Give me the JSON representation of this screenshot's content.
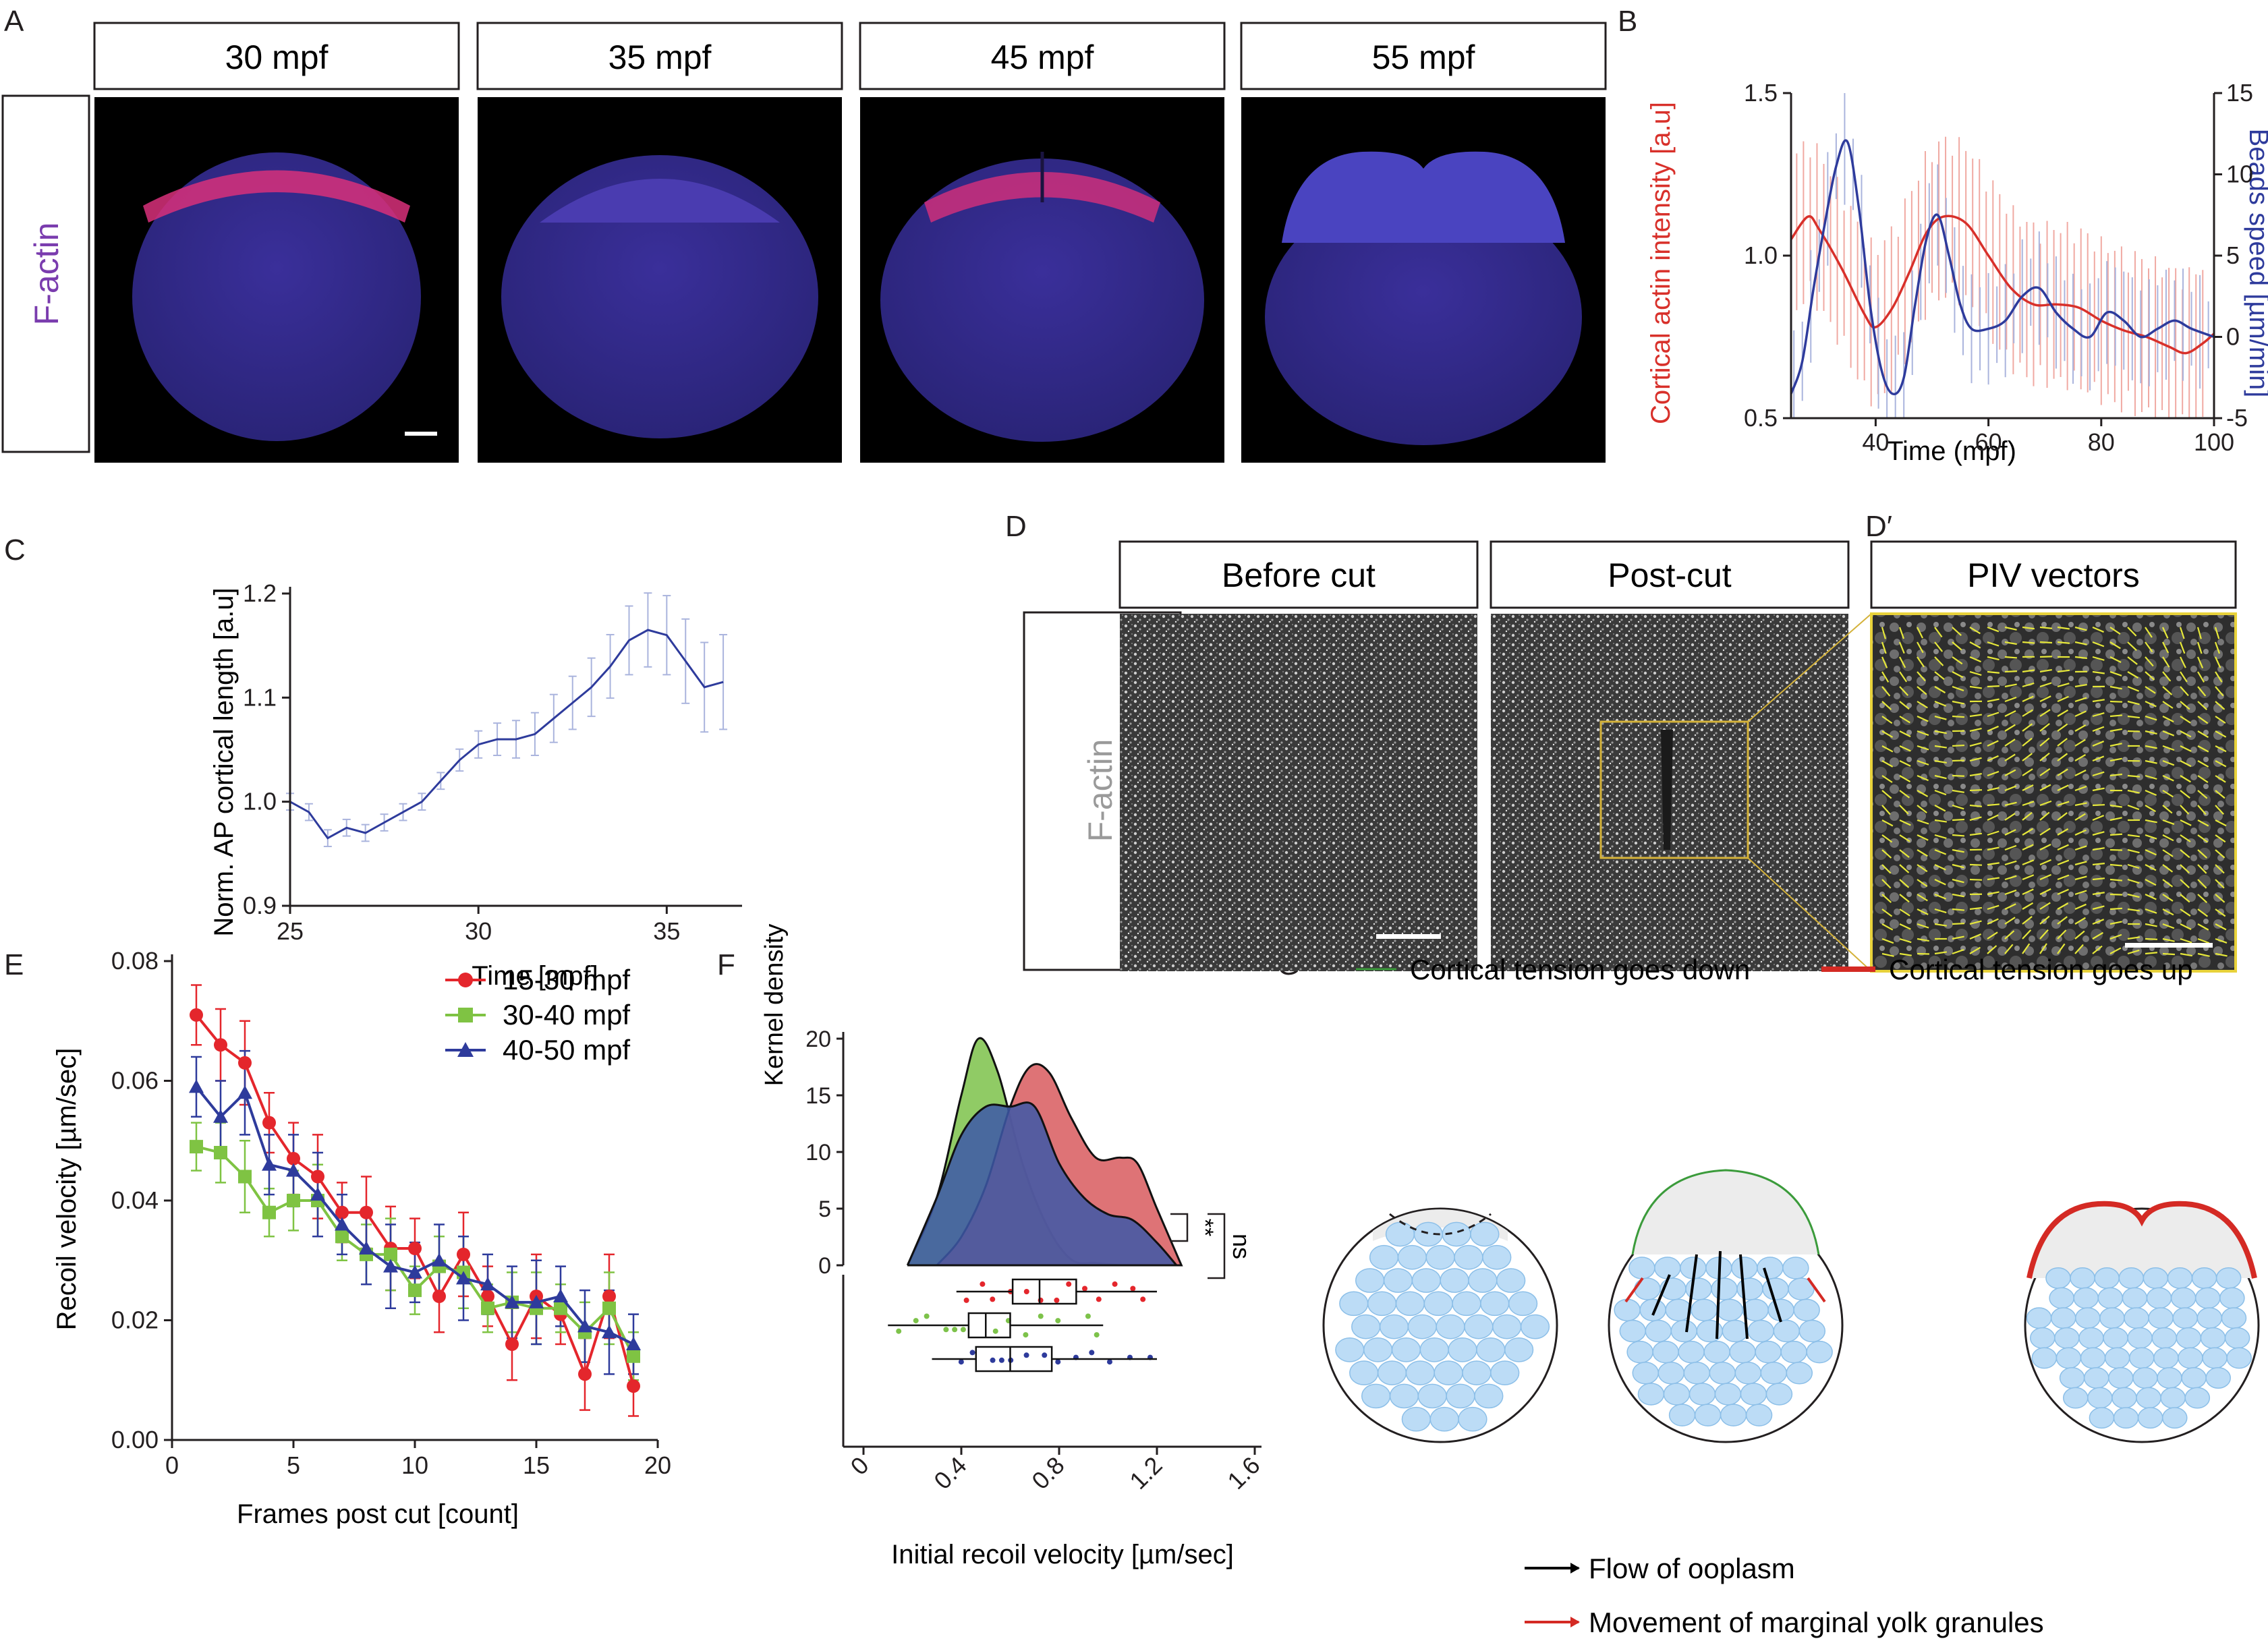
{
  "panel_letters": [
    "A",
    "B",
    "C",
    "D",
    "D′",
    "E",
    "F",
    "G"
  ],
  "panel_a": {
    "timepoints": [
      "30 mpf",
      "35 mpf",
      "45 mpf",
      "55 mpf"
    ],
    "channel_label": "F-actin"
  },
  "panel_d": {
    "headers": [
      "Before cut",
      "Post-cut",
      "PIV vectors"
    ],
    "channel_label": "F-actin"
  },
  "panel_g": {
    "legend_top": [
      "Cortical tension goes down",
      "Cortical tension goes up"
    ],
    "legend_bottom": [
      "Flow of ooplasm",
      "Movement of marginal yolk granules"
    ],
    "colors": {
      "down": "#3b9b3b",
      "up": "#d42a24",
      "cells": "#bcdcf6",
      "cell_edge": "#8cbfe8",
      "cap": "#ececec"
    }
  },
  "chart_data": [
    {
      "panel": "B",
      "type": "line",
      "xlabel": "Time (mpf)",
      "ylabel": "Cortical actin intensity [a.u]",
      "y2label": "Beads speed [µm/min]",
      "xlim": [
        25,
        100
      ],
      "ylim": [
        0.5,
        1.5
      ],
      "y2lim": [
        -5,
        15
      ],
      "xticks": [
        "40",
        "60",
        "80",
        "100"
      ],
      "yticks": [
        "0.5",
        "1.0",
        "1.5"
      ],
      "y2ticks": [
        "-5",
        "0",
        "5",
        "10",
        "15"
      ],
      "colors": {
        "actin": "#d8302a",
        "beads": "#2e3b9c",
        "actin_err": "#f0a9a2",
        "beads_err": "#aab4dd"
      },
      "series": [
        {
          "axis": "left",
          "x": [
            25,
            28,
            30,
            34,
            38,
            40,
            43,
            46,
            49,
            52,
            56,
            60,
            64,
            68,
            72,
            76,
            80,
            84,
            88,
            92,
            95,
            98,
            100
          ],
          "values": [
            1.05,
            1.12,
            1.08,
            0.96,
            0.82,
            0.78,
            0.84,
            0.95,
            1.07,
            1.12,
            1.1,
            1.0,
            0.9,
            0.85,
            0.85,
            0.84,
            0.8,
            0.77,
            0.75,
            0.72,
            0.7,
            0.73,
            0.76
          ]
        },
        {
          "axis": "right",
          "x": [
            25,
            27,
            29,
            31,
            33,
            35,
            37,
            39,
            41,
            43,
            45,
            47,
            49,
            51,
            53,
            55,
            57,
            60,
            63,
            66,
            69,
            72,
            75,
            78,
            81,
            84,
            87,
            90,
            93,
            96,
            100
          ],
          "values": [
            -3.5,
            -1.5,
            3,
            7,
            10.5,
            12,
            8,
            2,
            -2,
            -3.5,
            -2.5,
            2,
            6,
            7.5,
            5,
            2,
            0.5,
            0.5,
            1,
            2.5,
            3,
            1.5,
            0.5,
            0,
            1.5,
            1,
            0,
            0.5,
            1,
            0.5,
            0
          ]
        }
      ]
    },
    {
      "panel": "C",
      "type": "line",
      "xlabel": "Time [mpf]",
      "ylabel": "Norm. AP cortical length [a.u]",
      "xlim": [
        25,
        37
      ],
      "ylim": [
        0.9,
        1.2
      ],
      "xticks": [
        "25",
        "30",
        "35"
      ],
      "yticks": [
        "0.9",
        "1.0",
        "1.1",
        "1.2"
      ],
      "colors": {
        "line": "#2e3b9c",
        "err": "#aab4dd"
      },
      "series": [
        {
          "x": [
            25,
            25.5,
            26,
            26.5,
            27,
            27.5,
            28,
            28.5,
            29,
            29.5,
            30,
            30.5,
            31,
            31.5,
            32,
            32.5,
            33,
            33.5,
            34,
            34.5,
            35,
            35.5,
            36,
            36.5
          ],
          "values": [
            1.0,
            0.99,
            0.965,
            0.975,
            0.97,
            0.98,
            0.99,
            1.0,
            1.02,
            1.04,
            1.055,
            1.06,
            1.06,
            1.065,
            1.08,
            1.095,
            1.11,
            1.13,
            1.155,
            1.165,
            1.16,
            1.135,
            1.11,
            1.115
          ]
        }
      ]
    },
    {
      "panel": "E",
      "type": "line",
      "xlabel": "Frames post cut [count]",
      "ylabel": "Recoil velocity [µm/sec]",
      "xlim": [
        0,
        20
      ],
      "ylim": [
        0,
        0.08
      ],
      "xticks": [
        "0",
        "5",
        "10",
        "15",
        "20"
      ],
      "yticks": [
        "0.00",
        "0.02",
        "0.04",
        "0.06",
        "0.08"
      ],
      "x": [
        1,
        2,
        3,
        4,
        5,
        6,
        7,
        8,
        9,
        10,
        11,
        12,
        13,
        14,
        15,
        16,
        17,
        18,
        19
      ],
      "series": [
        {
          "name": "15-30 mpf",
          "color": "#e4262c",
          "values": [
            0.071,
            0.066,
            0.063,
            0.053,
            0.047,
            0.044,
            0.038,
            0.038,
            0.032,
            0.032,
            0.024,
            0.031,
            0.024,
            0.016,
            0.024,
            0.021,
            0.011,
            0.024,
            0.009
          ]
        },
        {
          "name": "30-40 mpf",
          "color": "#7fc343",
          "values": [
            0.049,
            0.048,
            0.044,
            0.038,
            0.04,
            0.04,
            0.034,
            0.031,
            0.031,
            0.025,
            0.029,
            0.028,
            0.022,
            0.023,
            0.022,
            0.022,
            0.018,
            0.022,
            0.014
          ]
        },
        {
          "name": "40-50 mpf",
          "color": "#2e3b9c",
          "values": [
            0.059,
            0.054,
            0.058,
            0.046,
            0.045,
            0.041,
            0.036,
            0.032,
            0.029,
            0.028,
            0.03,
            0.027,
            0.026,
            0.023,
            0.023,
            0.024,
            0.019,
            0.018,
            0.016
          ]
        }
      ]
    },
    {
      "panel": "F",
      "type": "area",
      "xlabel": "Initial recoil velocity [µm/sec]",
      "ylabel": "Kernel density",
      "xlim": [
        0,
        1.6
      ],
      "ylim": [
        0,
        20
      ],
      "xticks": [
        "0",
        "0.4",
        "0.8",
        "1.2",
        "1.6"
      ],
      "yticks": [
        "0",
        "5",
        "10",
        "15",
        "20"
      ],
      "significance": [
        "**",
        "ns"
      ],
      "densities": [
        {
          "color": "#7dc24a",
          "x": [
            0.18,
            0.3,
            0.4,
            0.47,
            0.55,
            0.65,
            0.75,
            0.85,
            0.95,
            1.05
          ],
          "values": [
            0,
            6,
            15,
            20,
            17,
            9,
            3.5,
            0.5,
            0.2,
            0
          ]
        },
        {
          "color": "#d85a5e",
          "x": [
            0.3,
            0.4,
            0.5,
            0.6,
            0.68,
            0.76,
            0.85,
            0.95,
            1.05,
            1.12,
            1.2,
            1.3
          ],
          "values": [
            0,
            2.5,
            7,
            14,
            17.5,
            17,
            13,
            9.5,
            9.5,
            9,
            5,
            0
          ]
        },
        {
          "color": "#3d58a8",
          "x": [
            0.18,
            0.3,
            0.4,
            0.5,
            0.6,
            0.7,
            0.8,
            0.9,
            1.0,
            1.1,
            1.2,
            1.28
          ],
          "values": [
            0,
            6,
            11.5,
            14,
            14,
            14,
            9,
            6,
            4.5,
            4,
            2,
            0
          ]
        }
      ],
      "boxes": [
        {
          "color": "#e4262c",
          "min": 0.38,
          "q1": 0.61,
          "median": 0.72,
          "q3": 0.87,
          "max": 1.2
        },
        {
          "color": "#7dc24a",
          "min": 0.1,
          "q1": 0.43,
          "median": 0.5,
          "q3": 0.6,
          "max": 0.98
        },
        {
          "color": "#2e3b9c",
          "min": 0.28,
          "q1": 0.46,
          "median": 0.6,
          "q3": 0.77,
          "max": 1.2
        }
      ]
    }
  ]
}
